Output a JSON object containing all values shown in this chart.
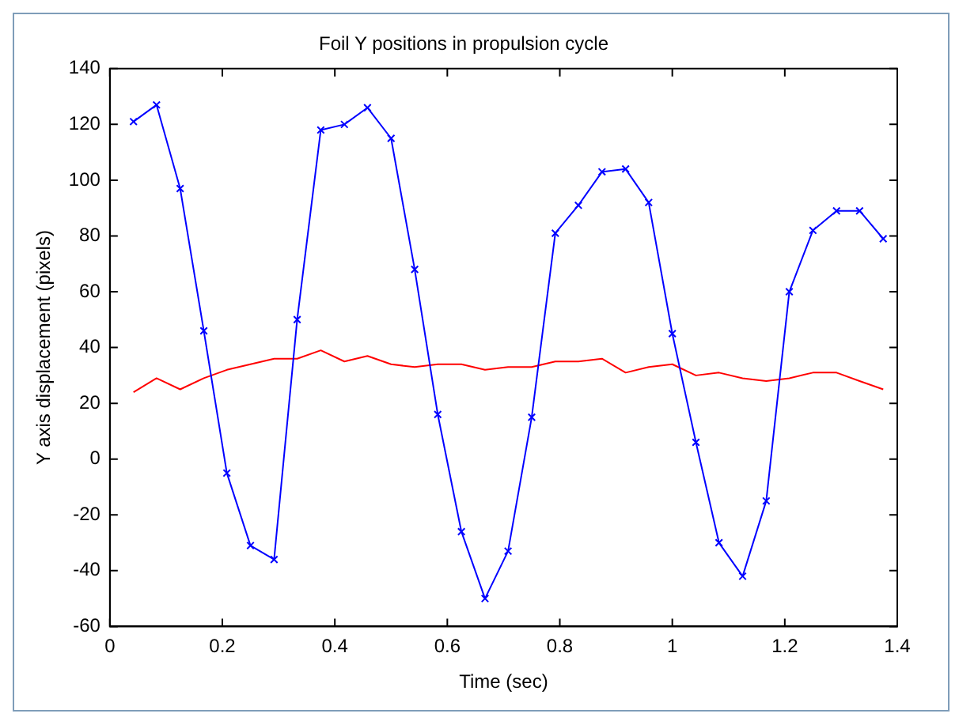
{
  "chart_data": {
    "type": "line",
    "title": "Foil Y positions in propulsion cycle",
    "xlabel": "Time (sec)",
    "ylabel": "Y axis displacement (pixels)",
    "xlim": [
      0,
      1.4
    ],
    "xticks": [
      0,
      0.2,
      0.4,
      0.6,
      0.8,
      1,
      1.2,
      1.4
    ],
    "ylim": [
      -60,
      140
    ],
    "yticks": [
      -60,
      -40,
      -20,
      0,
      20,
      40,
      60,
      80,
      100,
      120,
      140
    ],
    "grid": false,
    "legend": false,
    "series": [
      {
        "color": "#0000ff",
        "marker": "cross",
        "x": [
          0.042,
          0.083,
          0.125,
          0.167,
          0.208,
          0.25,
          0.292,
          0.333,
          0.375,
          0.417,
          0.458,
          0.5,
          0.542,
          0.583,
          0.625,
          0.667,
          0.708,
          0.75,
          0.792,
          0.833,
          0.875,
          0.917,
          0.958,
          1.0,
          1.042,
          1.083,
          1.125,
          1.167,
          1.208,
          1.25,
          1.292,
          1.333,
          1.375
        ],
        "values": [
          121,
          127,
          97,
          46,
          -5,
          -31,
          -36,
          50,
          118,
          120,
          126,
          115,
          68,
          16,
          -26,
          -50,
          -33,
          15,
          81,
          91,
          103,
          104,
          92,
          45,
          6,
          -30,
          -42,
          -15,
          60,
          82,
          89,
          89,
          79
        ]
      },
      {
        "color": "#ff0000",
        "marker": "none",
        "x": [
          0.042,
          0.083,
          0.125,
          0.167,
          0.208,
          0.25,
          0.292,
          0.333,
          0.375,
          0.417,
          0.458,
          0.5,
          0.542,
          0.583,
          0.625,
          0.667,
          0.708,
          0.75,
          0.792,
          0.833,
          0.875,
          0.917,
          0.958,
          1.0,
          1.042,
          1.083,
          1.125,
          1.167,
          1.208,
          1.25,
          1.292,
          1.333,
          1.375
        ],
        "values": [
          24,
          29,
          25,
          29,
          32,
          34,
          36,
          36,
          39,
          35,
          37,
          34,
          33,
          34,
          34,
          32,
          33,
          33,
          35,
          35,
          36,
          31,
          33,
          34,
          30,
          31,
          29,
          28,
          29,
          31,
          31,
          28,
          25
        ]
      }
    ]
  }
}
